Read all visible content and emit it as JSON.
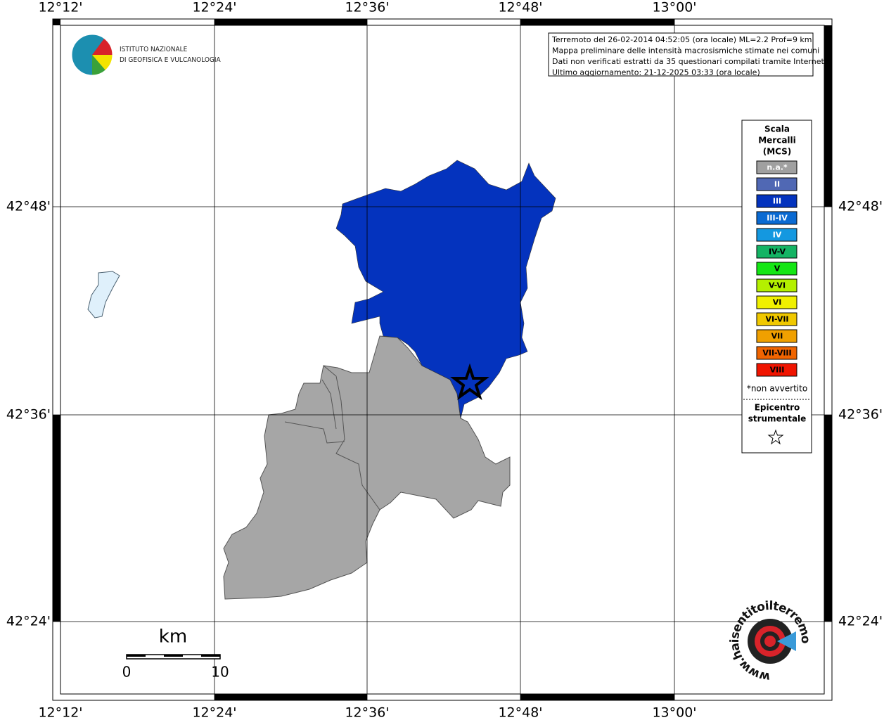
{
  "map": {
    "x_labels": [
      "12°12'",
      "12°24'",
      "12°36'",
      "12°48'",
      "13°00'"
    ],
    "y_labels": [
      "42°48'",
      "42°36'",
      "42°24'"
    ],
    "info": [
      "Terremoto del 26-02-2014 04:52:05 (ora locale) ML=2.2 Prof=9 km",
      "Mappa preliminare delle intensità macrosismiche stimate nei comuni",
      "Dati non verificati estratti da 35 questionari compilati tramite Internet.",
      "Ultimo aggiornamento: 21-12-2025 03:33 (ora locale)"
    ],
    "logo": [
      "ISTITUTO NAZIONALE",
      "DI GEOFISICA E VULCANOLOGIA"
    ],
    "legend": {
      "title": [
        "Scala",
        "Mercalli",
        "(MCS)"
      ],
      "items": [
        {
          "label": "n.a.*",
          "color": "#a0a0a0"
        },
        {
          "label": "II",
          "color": "#5068b4"
        },
        {
          "label": "III",
          "color": "#0433be"
        },
        {
          "label": "III-IV",
          "color": "#0a6ad2"
        },
        {
          "label": "IV",
          "color": "#1498e0"
        },
        {
          "label": "IV-V",
          "color": "#14b464"
        },
        {
          "label": "V",
          "color": "#14e614"
        },
        {
          "label": "V-VI",
          "color": "#b4f000"
        },
        {
          "label": "VI",
          "color": "#f0f000"
        },
        {
          "label": "VI-VII",
          "color": "#f0c800"
        },
        {
          "label": "VII",
          "color": "#f0a000"
        },
        {
          "label": "VII-VIII",
          "color": "#f06400"
        },
        {
          "label": "VIII",
          "color": "#f01400"
        }
      ],
      "note": "*non avvertito",
      "epicenter": [
        "Epicentro",
        "strumentale"
      ]
    },
    "scale": {
      "unit": "km",
      "labels": [
        "0",
        "10"
      ]
    },
    "site": "www.haisentitoilterremoto.it"
  }
}
